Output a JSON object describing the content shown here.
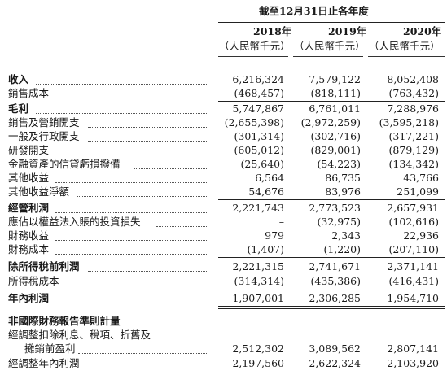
{
  "header": {
    "period_title": "截至12月31日止各年度",
    "years": [
      "2018年",
      "2019年",
      "2020年"
    ],
    "unit": "（人民幣千元）"
  },
  "rows": [
    {
      "label": "收入",
      "v": [
        "6,216,324",
        "7,579,122",
        "8,052,408"
      ],
      "bold": true
    },
    {
      "label": "銷售成本",
      "v": [
        "(468,457)",
        "(818,111)",
        "(763,432)"
      ]
    },
    {
      "label": "毛利",
      "v": [
        "5,747,867",
        "6,761,011",
        "7,288,976"
      ],
      "bold": true
    },
    {
      "label": "銷售及營銷開支",
      "v": [
        "(2,655,398)",
        "(2,972,259)",
        "(3,595,218)"
      ]
    },
    {
      "label": "一般及行政開支",
      "v": [
        "(301,314)",
        "(302,716)",
        "(317,221)"
      ]
    },
    {
      "label": "研發開支",
      "v": [
        "(605,012)",
        "(829,001)",
        "(879,129)"
      ]
    },
    {
      "label": "金融資產的信貸虧損撥備",
      "v": [
        "(25,640)",
        "(54,223)",
        "(134,342)"
      ]
    },
    {
      "label": "其他收益",
      "v": [
        "6,564",
        "86,735",
        "43,766"
      ]
    },
    {
      "label": "其他收益淨額",
      "v": [
        "54,676",
        "83,976",
        "251,099"
      ]
    },
    {
      "label": "經營利潤",
      "v": [
        "2,221,743",
        "2,773,523",
        "2,657,931"
      ],
      "bold": true
    },
    {
      "label": "應佔以權益法入賬的投資損失",
      "v": [
        "–",
        "(32,975)",
        "(102,616)"
      ]
    },
    {
      "label": "財務收益",
      "v": [
        "979",
        "2,343",
        "22,936"
      ]
    },
    {
      "label": "財務成本",
      "v": [
        "(1,407)",
        "(1,220)",
        "(207,110)"
      ]
    },
    {
      "label": "除所得稅前利潤",
      "v": [
        "2,221,315",
        "2,741,671",
        "2,371,141"
      ],
      "bold": true
    },
    {
      "label": "所得稅成本",
      "v": [
        "(314,314)",
        "(435,386)",
        "(416,431)"
      ]
    },
    {
      "label": "年內利潤",
      "v": [
        "1,907,001",
        "2,306,285",
        "1,954,710"
      ],
      "bold": true
    }
  ],
  "ifrs": {
    "section_title": "非國際財務報告準則計量",
    "ebitda_label_line1": "經調整扣除利息、稅項、折舊及",
    "ebitda_label_line2": "攤銷前盈利",
    "ebitda_values": [
      "2,512,302",
      "3,089,562",
      "2,807,141"
    ],
    "adj_profit_label": "經調整年內利潤",
    "adj_profit_values": [
      "2,197,560",
      "2,622,324",
      "2,103,920"
    ]
  }
}
